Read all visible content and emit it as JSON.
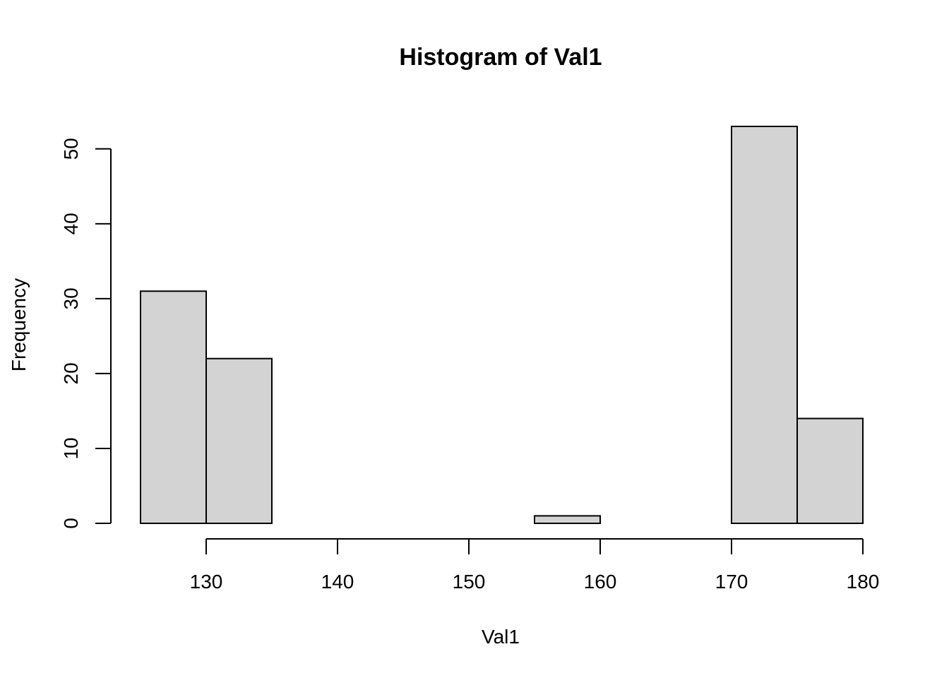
{
  "chart_data": {
    "type": "bar",
    "title": "Histogram of Val1",
    "xlabel": "Val1",
    "ylabel": "Frequency",
    "bins": [
      {
        "start": 125,
        "end": 130,
        "count": 31
      },
      {
        "start": 130,
        "end": 135,
        "count": 22
      },
      {
        "start": 135,
        "end": 140,
        "count": 0
      },
      {
        "start": 140,
        "end": 145,
        "count": 0
      },
      {
        "start": 145,
        "end": 150,
        "count": 0
      },
      {
        "start": 150,
        "end": 155,
        "count": 0
      },
      {
        "start": 155,
        "end": 160,
        "count": 1
      },
      {
        "start": 160,
        "end": 165,
        "count": 0
      },
      {
        "start": 165,
        "end": 170,
        "count": 0
      },
      {
        "start": 170,
        "end": 175,
        "count": 53
      },
      {
        "start": 175,
        "end": 180,
        "count": 14
      }
    ],
    "x_ticks": [
      130,
      140,
      150,
      160,
      170,
      180
    ],
    "y_ticks": [
      0,
      10,
      20,
      30,
      40,
      50
    ],
    "xlim": [
      125,
      180
    ],
    "ylim": [
      0,
      53
    ],
    "bar_color": "#d3d3d3",
    "grid": false
  }
}
